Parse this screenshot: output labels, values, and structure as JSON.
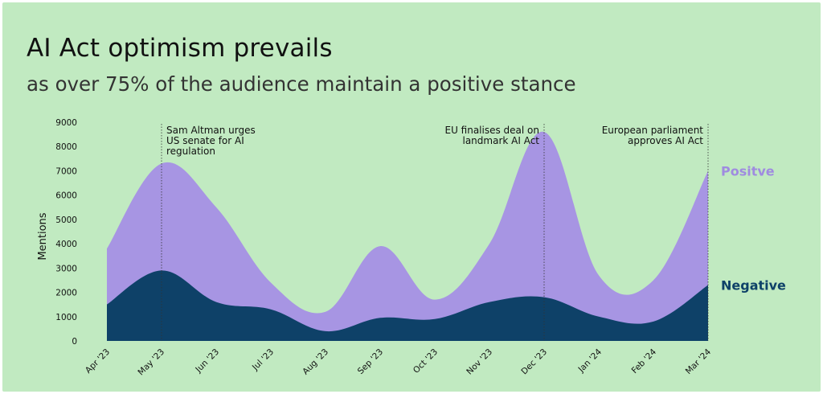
{
  "title": "AI Act optimism prevails",
  "subtitle": "as over 75% of the audience maintain a positive stance",
  "colors": {
    "background": "#c1eac1",
    "positive": "#a795e3",
    "negative": "#0e4168",
    "positive_label": "#9f8be0",
    "negative_label": "#0e4168"
  },
  "chart_data": {
    "type": "area",
    "ylabel": "Mentions",
    "xlabel": "",
    "ylim": [
      0,
      9000
    ],
    "yticks": [
      0,
      1000,
      2000,
      3000,
      4000,
      5000,
      6000,
      7000,
      8000,
      9000
    ],
    "grid": false,
    "categories": [
      "Apr '23",
      "May '23",
      "Jun '23",
      "Jul '23",
      "Aug '23",
      "Sep '23",
      "Oct '23",
      "Nov '23",
      "Dec '23",
      "Jan '24",
      "Feb '24",
      "Mar '24"
    ],
    "series": [
      {
        "name": "Positve",
        "stacked_on": "Negative",
        "values": [
          3800,
          7300,
          5500,
          2400,
          1200,
          3900,
          1700,
          4000,
          8600,
          2700,
          2500,
          7000
        ]
      },
      {
        "name": "Negative",
        "values": [
          1500,
          2900,
          1600,
          1300,
          400,
          950,
          900,
          1600,
          1800,
          1000,
          800,
          2300
        ]
      }
    ],
    "annotations": [
      {
        "category": "May '23",
        "lines": [
          "Sam Altman urges",
          "US senate for AI",
          "regulation"
        ],
        "align": "left"
      },
      {
        "category": "Dec '23",
        "lines": [
          "EU finalises deal on",
          "landmark AI Act"
        ],
        "align": "right"
      },
      {
        "category": "Mar '24",
        "lines": [
          "European parliament",
          "approves AI Act"
        ],
        "align": "right"
      }
    ]
  }
}
